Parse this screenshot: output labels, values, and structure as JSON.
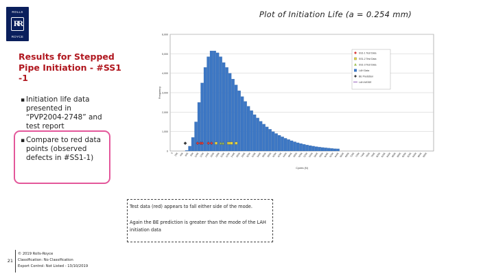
{
  "logo": {
    "top_text": "ROLLS",
    "bottom_text": "ROYCE",
    "monogram": "RR"
  },
  "slide": {
    "title": "Plot of Initiation Life (a = 0.254 mm)",
    "subtitle": "Results for Stepped Pipe Initiation - #SS1 -1",
    "bullets": [
      "Initiation life data presented in “PVP2004-2748” and test report",
      "Compare to red data points (observed defects in #SS1-1)"
    ],
    "bullet_marker": "▪",
    "highlight_color": "#e3579a"
  },
  "notes": {
    "line1": "Test data (red) appears to fall either side of the mode.",
    "line2": "Again the BE prediction is greater than the mode of the LAH initiation data"
  },
  "footer": {
    "page_number": "21",
    "lines": [
      "© 2019 Rolls-Royce",
      "Classification: No Classification",
      "Export Control: Not Listed - 13/10/2019"
    ]
  },
  "chart_data": {
    "type": "bar",
    "title": "",
    "xlabel": "Cycles (N)",
    "ylabel": "Frequency",
    "ylim": [
      0,
      6000
    ],
    "yticks": [
      "0",
      "1,000",
      "2,000",
      "3,000",
      "4,000",
      "5,000",
      "6,000"
    ],
    "categories": [
      "0",
      "20K",
      "40K",
      "60K",
      "80K",
      "100K",
      "120K",
      "140K",
      "160K",
      "180K",
      "200K",
      "220K",
      "240K",
      "260K",
      "280K",
      "300K",
      "320K",
      "340K",
      "360K",
      "380K",
      "400K",
      "420K",
      "440K",
      "460K",
      "480K",
      "500K",
      "520K",
      "540K",
      "560K",
      "580K",
      "600K",
      "620K",
      "640K",
      "660K",
      "680K",
      "700K",
      "720K",
      "740K",
      "760K",
      "780K",
      "800K",
      "820K",
      "840K",
      "860K",
      "880K",
      "900K",
      "920K",
      "940K",
      "960K",
      "980K"
    ],
    "series": [
      {
        "name": "LAH Data",
        "color": "#3d77c4",
        "values": [
          30,
          250,
          700,
          1500,
          2500,
          3500,
          4300,
          4850,
          5150,
          5150,
          5050,
          4850,
          4550,
          4300,
          4000,
          3700,
          3400,
          3100,
          2800,
          2550,
          2300,
          2080,
          1870,
          1700,
          1530,
          1380,
          1240,
          1120,
          1000,
          900,
          810,
          730,
          655,
          590,
          530,
          475,
          425,
          385,
          345,
          310,
          280,
          250,
          225,
          200,
          180,
          165,
          150,
          135,
          120,
          110
        ]
      }
    ],
    "legend": [
      {
        "label": "SS1-1 Test Data",
        "color": "#d93c3c",
        "marker": "diamond"
      },
      {
        "label": "SS1-2 Test Data",
        "color": "#e6d53c",
        "marker": "square"
      },
      {
        "label": "SS1-3 Test Data",
        "color": "#9cbe52",
        "marker": "triangle"
      },
      {
        "label": "LAH Data",
        "color": "#3d77c4",
        "marker": "bar"
      },
      {
        "label": "BE Prediction",
        "color": "#3a3a3a",
        "marker": "diamond"
      },
      {
        "label": "LAH-MODE",
        "color": "#7c3aa8",
        "marker": "line"
      }
    ],
    "legend_position": "top-right",
    "markers": [
      {
        "series": "BE Prediction",
        "x": 0,
        "color": "#3a3a3a",
        "shape": "diamond"
      },
      {
        "series": "SS1-1 Test Data",
        "x": 80000,
        "color": "#d93c3c",
        "shape": "diamond"
      },
      {
        "series": "SS1-1 Test Data",
        "x": 100000,
        "color": "#d93c3c",
        "shape": "diamond"
      },
      {
        "series": "SS1-1 Test Data",
        "x": 110000,
        "color": "#d93c3c",
        "shape": "diamond"
      },
      {
        "series": "SS1-1 Test Data",
        "x": 150000,
        "color": "#d93c3c",
        "shape": "diamond"
      },
      {
        "series": "SS1-1 Test Data",
        "x": 170000,
        "color": "#d93c3c",
        "shape": "diamond"
      },
      {
        "series": "SS1-2 Test Data",
        "x": 200000,
        "color": "#e6d53c",
        "shape": "square"
      },
      {
        "series": "SS1-3 Test Data",
        "x": 230000,
        "color": "#9cbe52",
        "shape": "triangle"
      },
      {
        "series": "SS1-3 Test Data",
        "x": 245000,
        "color": "#9cbe52",
        "shape": "triangle"
      },
      {
        "series": "SS1-2 Test Data",
        "x": 280000,
        "color": "#e6d53c",
        "shape": "square"
      },
      {
        "series": "SS1-2 Test Data",
        "x": 290000,
        "color": "#e6d53c",
        "shape": "square"
      },
      {
        "series": "SS1-2 Test Data",
        "x": 300000,
        "color": "#e6d53c",
        "shape": "square"
      },
      {
        "series": "SS1-2 Test Data",
        "x": 330000,
        "color": "#e6d53c",
        "shape": "square"
      }
    ],
    "marker_y": 400
  }
}
